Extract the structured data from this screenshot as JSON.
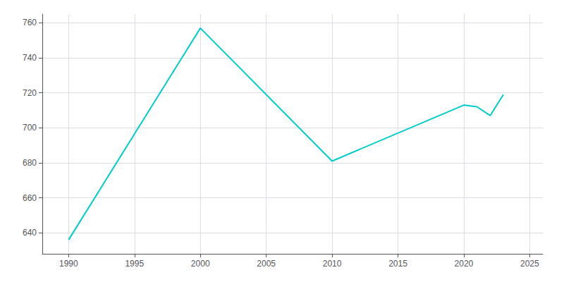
{
  "chart_data": {
    "type": "line",
    "x": [
      1990,
      2000,
      2010,
      2020,
      2021,
      2022,
      2023
    ],
    "values": [
      636,
      757,
      681,
      713,
      712,
      707,
      719
    ],
    "color": "#00CCCC",
    "xlim": [
      1988,
      2026
    ],
    "xticks": [
      1990,
      1995,
      2000,
      2005,
      2010,
      2015,
      2020,
      2025
    ],
    "ylim": [
      628,
      765
    ],
    "yticks": [
      640,
      660,
      680,
      700,
      720,
      740,
      760
    ],
    "grid": true
  }
}
